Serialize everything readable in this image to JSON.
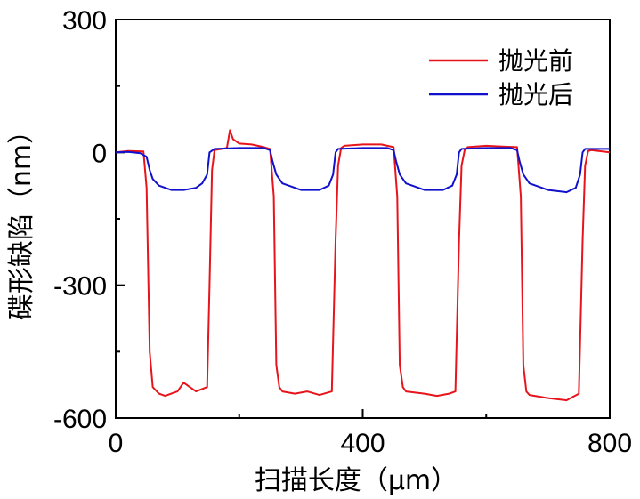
{
  "chart_data": {
    "type": "line",
    "title": "",
    "xlabel": "扫描长度（μm）",
    "ylabel": "碟形缺陷（nm）",
    "xlim": [
      0,
      800
    ],
    "ylim": [
      -600,
      300
    ],
    "xticks": [
      "0",
      "400",
      "800"
    ],
    "yticks": [
      "300",
      "0",
      "-300",
      "-600"
    ],
    "grid": false,
    "legend_position": "top-right",
    "series": [
      {
        "name": "抛光前",
        "color": "#e8141b",
        "x": [
          0,
          20,
          45,
          50,
          55,
          60,
          70,
          80,
          100,
          110,
          130,
          148,
          152,
          156,
          160,
          180,
          185,
          190,
          200,
          220,
          240,
          250,
          256,
          260,
          265,
          270,
          290,
          310,
          330,
          350,
          356,
          360,
          365,
          370,
          400,
          430,
          450,
          456,
          460,
          465,
          470,
          500,
          520,
          540,
          550,
          556,
          560,
          565,
          570,
          600,
          630,
          650,
          656,
          660,
          665,
          670,
          700,
          730,
          750,
          756,
          760,
          765,
          770,
          800
        ],
        "y": [
          0,
          3,
          2,
          -80,
          -450,
          -530,
          -545,
          -550,
          -540,
          -520,
          -540,
          -530,
          -300,
          -40,
          5,
          10,
          50,
          30,
          20,
          18,
          12,
          8,
          -100,
          -480,
          -530,
          -540,
          -545,
          -540,
          -548,
          -540,
          -200,
          -30,
          10,
          15,
          18,
          18,
          12,
          -100,
          -480,
          -530,
          -540,
          -545,
          -550,
          -545,
          -540,
          -200,
          -30,
          5,
          12,
          15,
          13,
          12,
          -100,
          -480,
          -540,
          -548,
          -555,
          -560,
          -545,
          -200,
          -30,
          3,
          5,
          0
        ]
      },
      {
        "name": "抛光后",
        "color": "#1111cc",
        "x": [
          0,
          20,
          40,
          50,
          55,
          60,
          70,
          90,
          110,
          130,
          140,
          148,
          152,
          160,
          200,
          240,
          250,
          254,
          260,
          270,
          300,
          330,
          345,
          352,
          356,
          360,
          400,
          440,
          450,
          454,
          460,
          470,
          500,
          530,
          545,
          552,
          556,
          560,
          600,
          640,
          650,
          654,
          660,
          670,
          700,
          730,
          745,
          752,
          756,
          760,
          800
        ],
        "y": [
          0,
          1,
          -2,
          -10,
          -40,
          -60,
          -75,
          -85,
          -85,
          -80,
          -70,
          -50,
          0,
          8,
          10,
          10,
          5,
          -20,
          -50,
          -70,
          -85,
          -85,
          -75,
          -50,
          0,
          8,
          10,
          10,
          5,
          -20,
          -50,
          -70,
          -85,
          -85,
          -75,
          -50,
          0,
          8,
          10,
          10,
          5,
          -20,
          -50,
          -70,
          -85,
          -90,
          -80,
          -50,
          0,
          8,
          8
        ]
      }
    ]
  }
}
